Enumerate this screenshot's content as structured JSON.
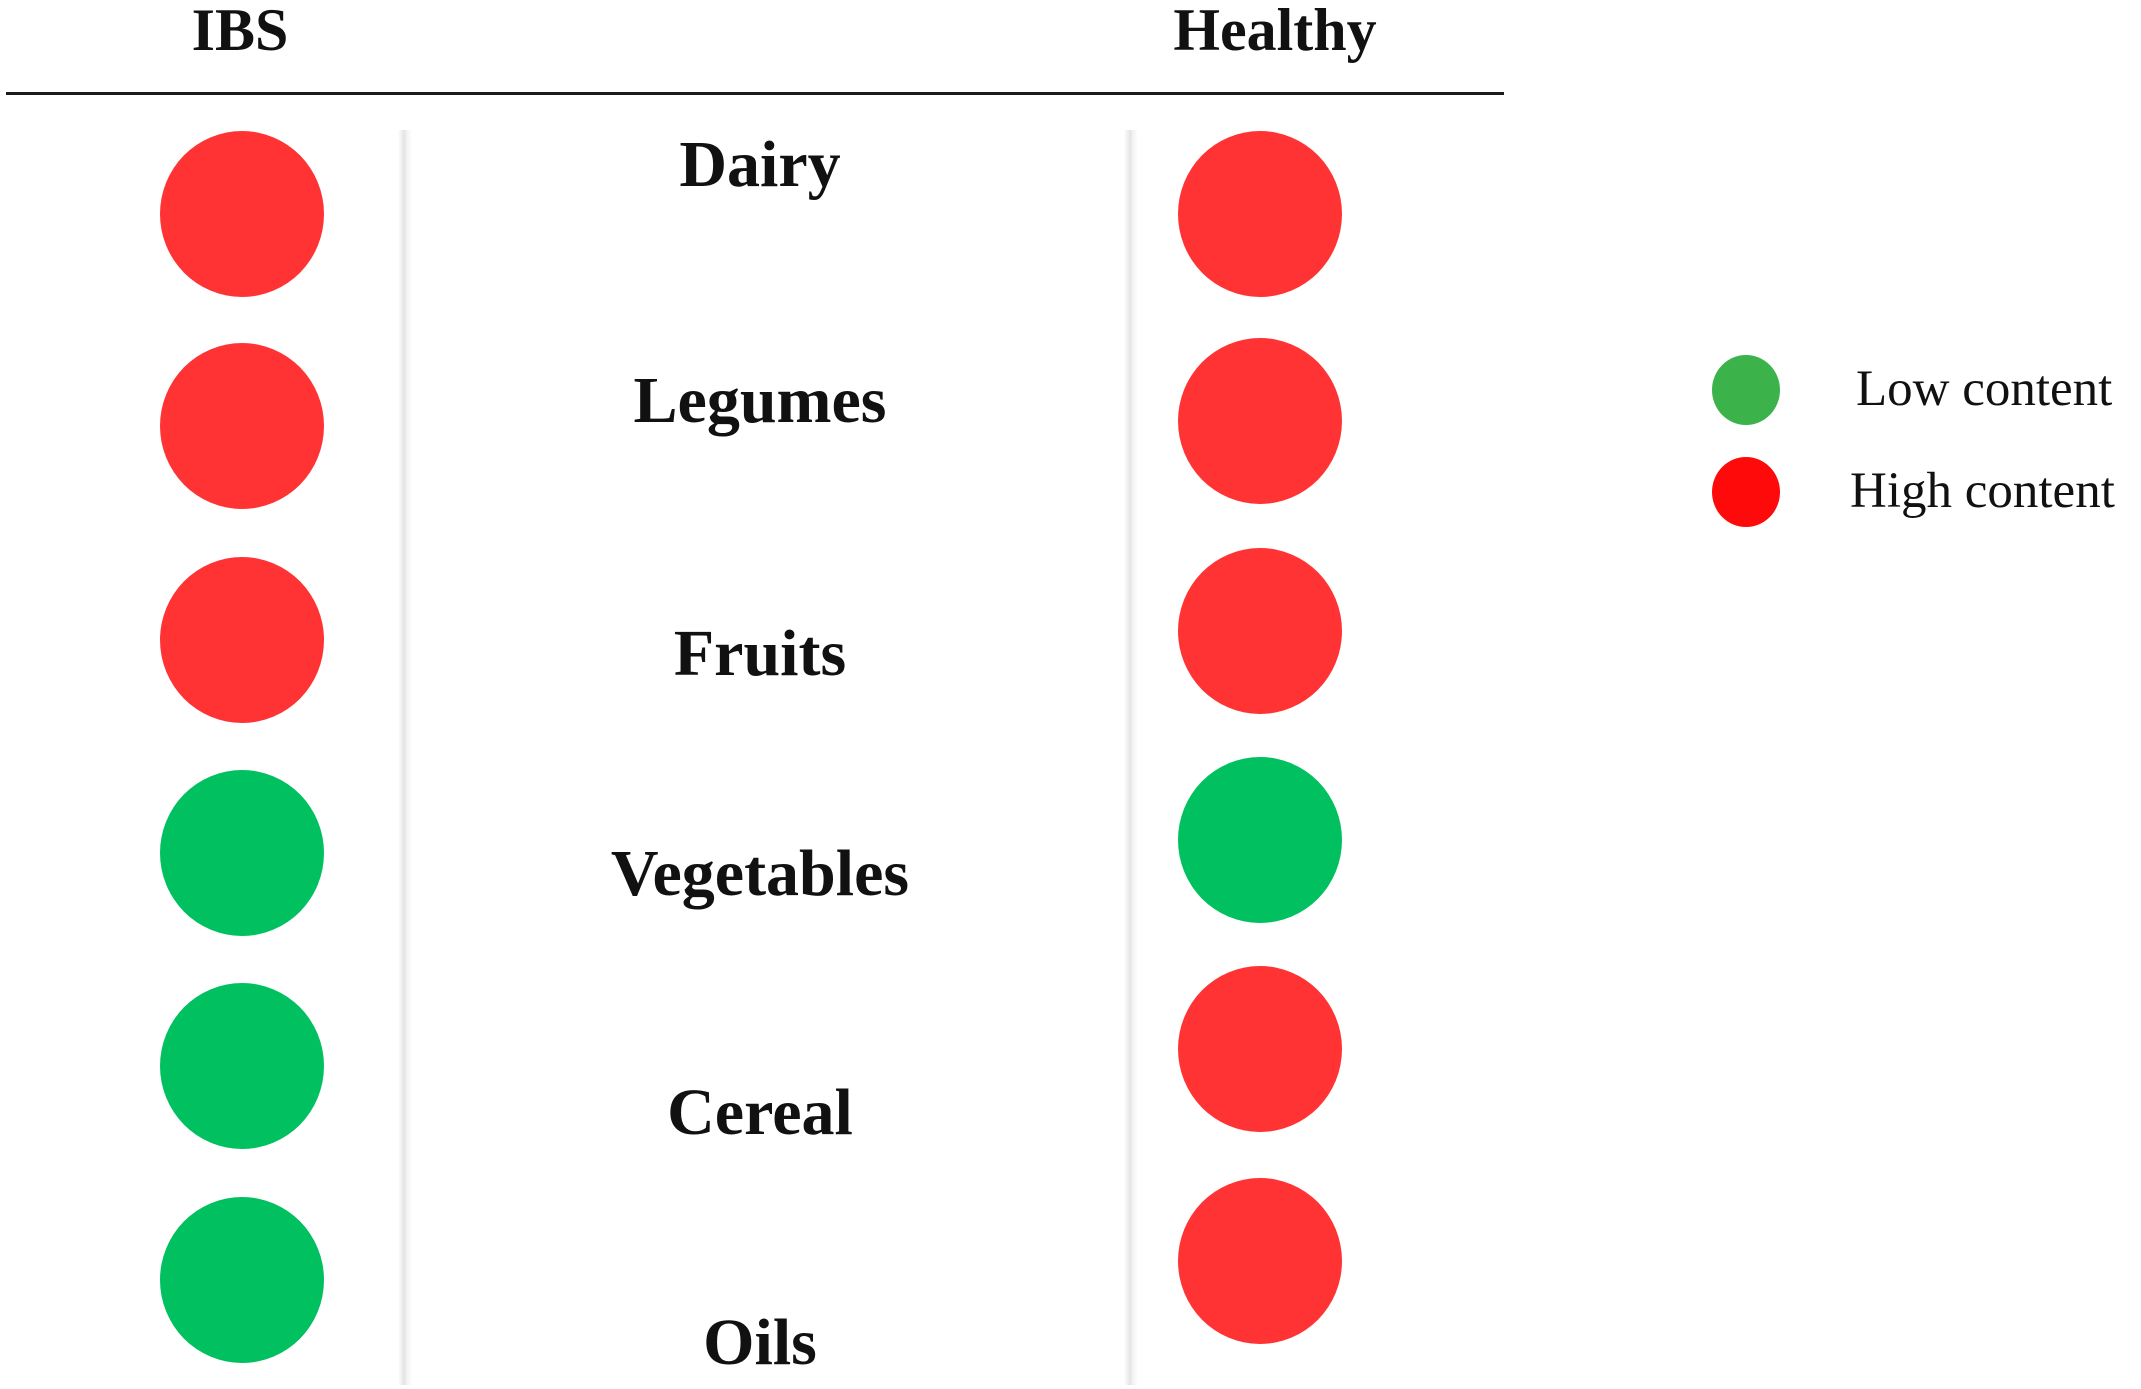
{
  "headers": {
    "ibs": "IBS",
    "healthy": "Healthy"
  },
  "colors": {
    "high": "#ff3333",
    "low": "#00c060",
    "legend_low": "#3cb34a",
    "legend_high": "#ff0a0a"
  },
  "foods": [
    {
      "label": "Dairy",
      "ibs": "high",
      "healthy": "high"
    },
    {
      "label": "Legumes",
      "ibs": "high",
      "healthy": "high"
    },
    {
      "label": "Fruits",
      "ibs": "high",
      "healthy": "high"
    },
    {
      "label": "Vegetables",
      "ibs": "low",
      "healthy": "low"
    },
    {
      "label": "Cereal",
      "ibs": "low",
      "healthy": "high"
    },
    {
      "label": "Oils",
      "ibs": "low",
      "healthy": "high"
    }
  ],
  "legend": {
    "low_label": "Low content",
    "high_label": "High content"
  }
}
